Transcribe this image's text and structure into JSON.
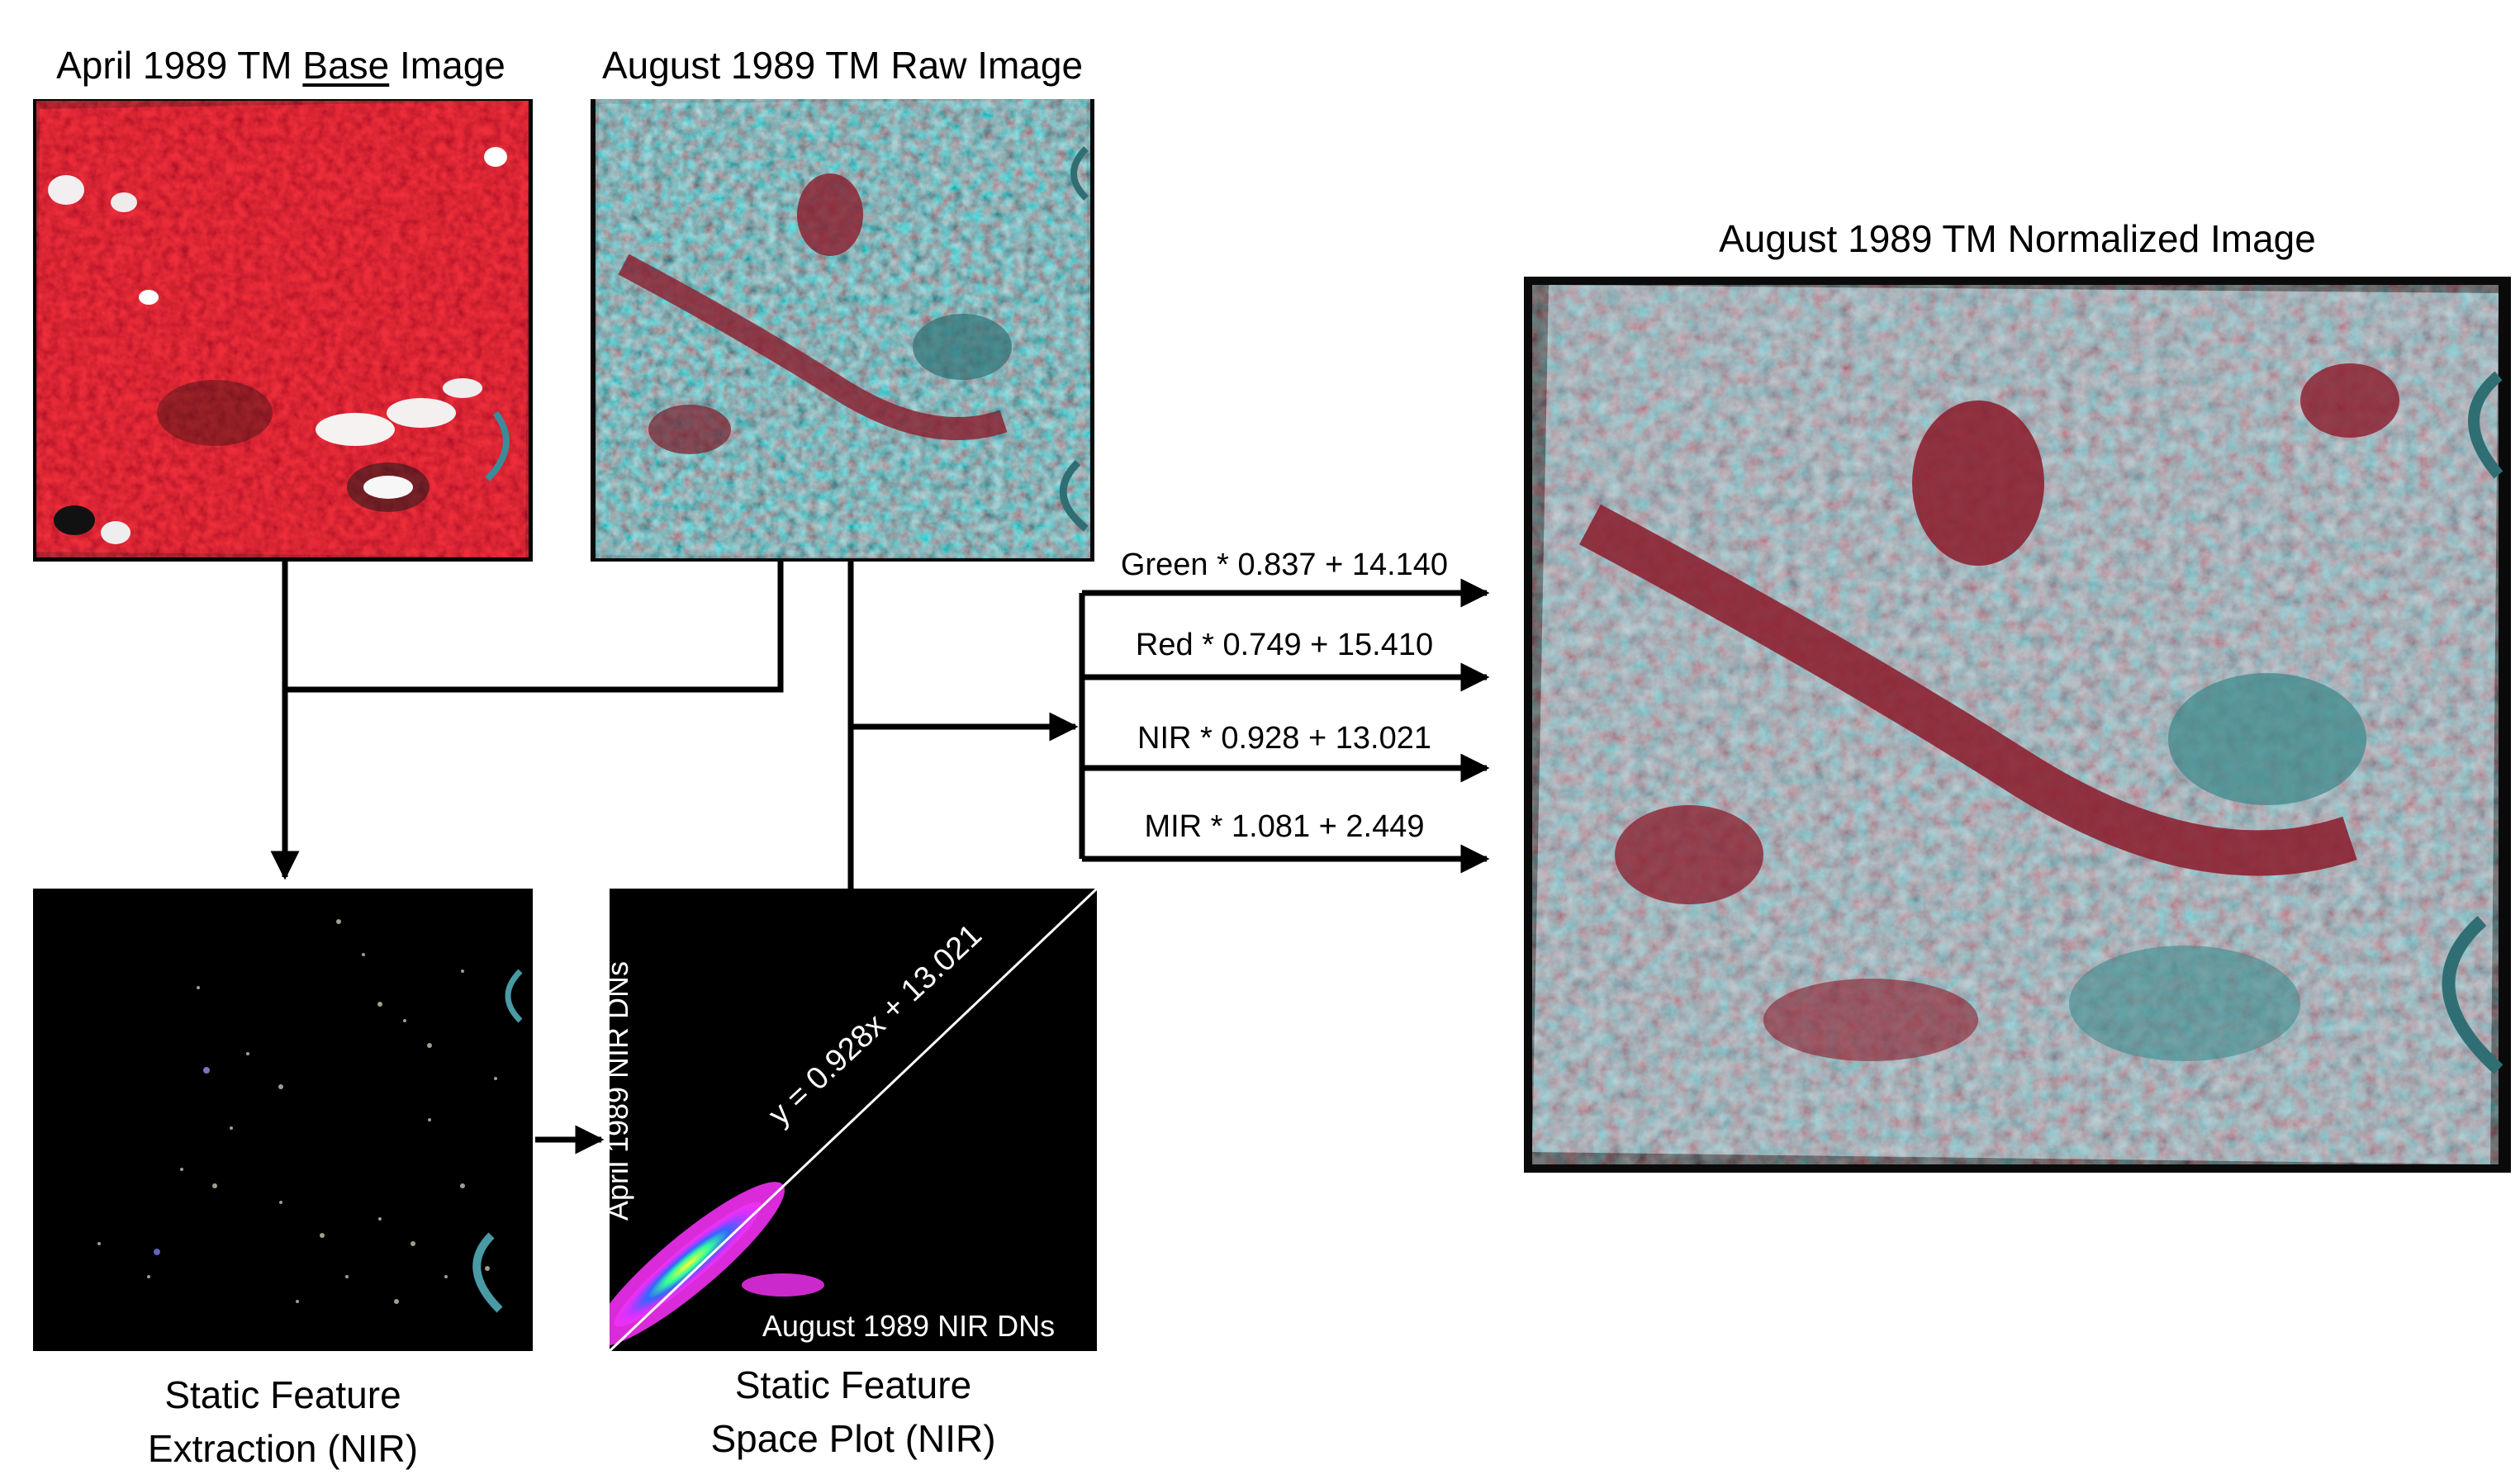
{
  "labels": {
    "base_title_1": "April 1989 TM ",
    "base_title_underlined": "Base",
    "base_title_2": " Image",
    "raw_title": "August 1989 TM Raw Image",
    "normalized_title": "August 1989 TM Normalized Image",
    "extraction_line1": "Static Feature",
    "extraction_line2": "Extraction (NIR)",
    "plot_line1": "Static Feature",
    "plot_line2": "Space Plot (NIR)"
  },
  "equations": {
    "green": "Green * 0.837 + 14.140",
    "red": "Red * 0.749 + 15.410",
    "nir": "NIR * 0.928 + 13.021",
    "mir": "MIR * 1.081 + 2.449"
  },
  "scatter_plot": {
    "ylabel": "April 1989 NIR DNs",
    "xlabel": "August 1989 NIR DNs",
    "fit_label": "y = 0.928x + 13.021"
  },
  "colors": {
    "base_image_tint": "#b3121c",
    "raw_image_tint": "#3f8a8c",
    "normalized_pink": "#d9547a",
    "normalized_cyan": "#66d4d0",
    "scatter_magenta": "#ff33ff",
    "scatter_yellow": "#ffff33"
  }
}
